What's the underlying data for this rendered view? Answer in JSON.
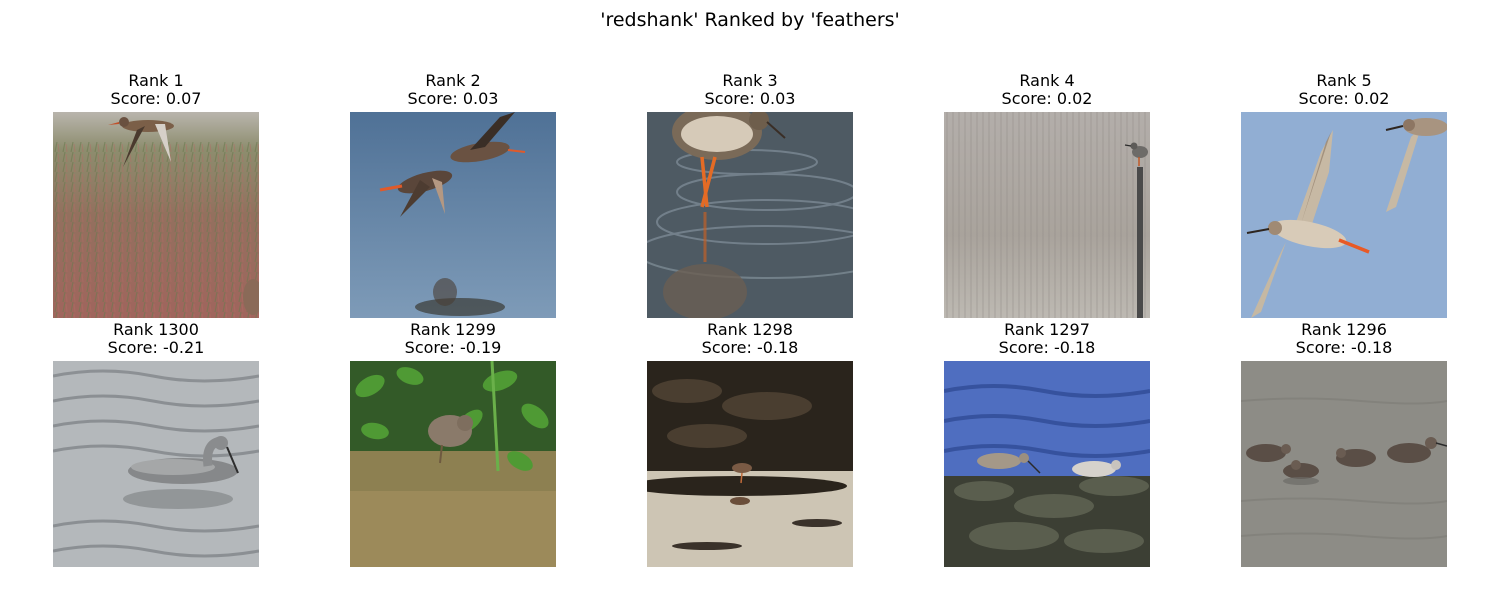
{
  "title": "'redshank' Ranked by 'feathers'",
  "top_row": [
    {
      "rank": "Rank 1",
      "score": "Score: 0.07",
      "scene": "bird flying low over red-green marsh vegetation"
    },
    {
      "rank": "Rank 2",
      "score": "Score: 0.03",
      "scene": "two redshanks flying over blue water with reflection"
    },
    {
      "rank": "Rank 3",
      "score": "Score: 0.03",
      "scene": "redshank wading with orange legs, rippled water"
    },
    {
      "rank": "Rank 4",
      "score": "Score: 0.02",
      "scene": "bird perched on post in pale reed field"
    },
    {
      "rank": "Rank 5",
      "score": "Score: 0.02",
      "scene": "two redshanks in flight against blue sky"
    }
  ],
  "bottom_row": [
    {
      "rank": "Rank 1300",
      "score": "Score: -0.21",
      "scene": "grey bird swimming on silvery rippled water"
    },
    {
      "rank": "Rank 1299",
      "score": "Score: -0.19",
      "scene": "chick among green leaves on dirt"
    },
    {
      "rank": "Rank 1298",
      "score": "Score: -0.18",
      "scene": "small wader on dark rocks with pale water"
    },
    {
      "rank": "Rank 1297",
      "score": "Score: -0.18",
      "scene": "two waders on dark rocks by blue waves"
    },
    {
      "rank": "Rank 1296",
      "score": "Score: -0.18",
      "scene": "four waders foraging in grey water"
    }
  ],
  "colors": {
    "background": "#ffffff",
    "text": "#000000"
  }
}
